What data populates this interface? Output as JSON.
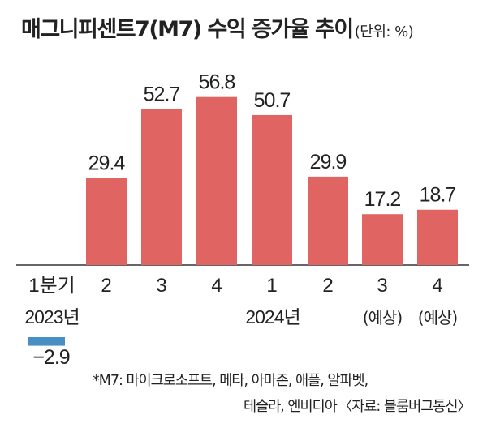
{
  "title": "매그니피센트7(M7) 수익 증가율 추이",
  "unit": "(단위: %)",
  "chart_data": {
    "type": "bar",
    "categories": [
      "1분기",
      "2",
      "3",
      "4",
      "1",
      "2",
      "3",
      "4"
    ],
    "values": [
      -2.9,
      29.4,
      52.7,
      56.8,
      50.7,
      29.9,
      17.2,
      18.7
    ],
    "value_labels": [
      "−2.9",
      "29.4",
      "52.7",
      "56.8",
      "50.7",
      "29.9",
      "17.2",
      "18.7"
    ],
    "year_labels": [
      "2023년",
      "2024년"
    ],
    "projection_label": "(예상)",
    "colors": {
      "positive": "#e06562",
      "negative": "#4a8fc4",
      "axis": "#333333"
    }
  },
  "footnote": {
    "line1": "*M7: 마이크로소프트, 메타, 아마존, 애플, 알파벳,",
    "line2": "테슬라, 엔비디아",
    "source": "〈자료: 블룸버그통신〉"
  }
}
